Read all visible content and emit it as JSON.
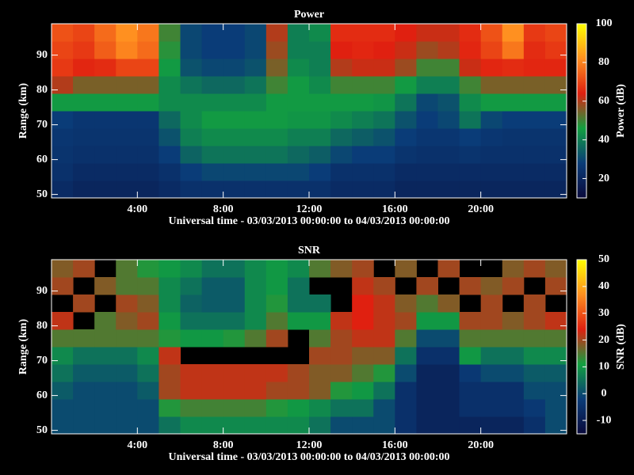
{
  "chart_data": [
    {
      "type": "heatmap",
      "title": "Power",
      "xlabel": "Universal time - 03/03/2013 00:00:00 to 04/03/2013 00:00:00",
      "ylabel": "Range (km)",
      "colorbar_label": "Power (dB)",
      "x": [
        0.5,
        1.5,
        2.5,
        3.5,
        4.5,
        5.5,
        6.5,
        7.5,
        8.5,
        9.5,
        10.5,
        11.5,
        12.5,
        13.5,
        14.5,
        15.5,
        16.5,
        17.5,
        18.5,
        19.5,
        20.5,
        21.5,
        22.5,
        23.5
      ],
      "y": [
        51.5,
        56.5,
        61.5,
        66.5,
        71.5,
        76.5,
        81.5,
        86.5,
        91.5,
        96.5
      ],
      "z": [
        [
          22,
          20,
          20,
          20,
          20,
          22,
          24,
          24,
          24,
          24,
          24,
          24,
          24,
          22,
          22,
          22,
          20,
          20,
          20,
          20,
          20,
          20,
          20,
          20
        ],
        [
          24,
          22,
          22,
          22,
          22,
          24,
          28,
          30,
          30,
          30,
          30,
          30,
          28,
          24,
          24,
          24,
          22,
          22,
          22,
          22,
          22,
          22,
          22,
          22
        ],
        [
          25,
          24,
          24,
          24,
          24,
          28,
          35,
          38,
          38,
          38,
          38,
          36,
          34,
          30,
          28,
          28,
          25,
          24,
          24,
          25,
          24,
          24,
          24,
          24
        ],
        [
          26,
          25,
          25,
          25,
          25,
          32,
          40,
          42,
          42,
          42,
          42,
          40,
          40,
          36,
          34,
          32,
          28,
          26,
          26,
          28,
          26,
          25,
          25,
          25
        ],
        [
          28,
          26,
          26,
          26,
          26,
          36,
          42,
          45,
          45,
          45,
          45,
          44,
          44,
          42,
          40,
          38,
          32,
          28,
          30,
          38,
          30,
          28,
          28,
          28
        ],
        [
          45,
          45,
          45,
          45,
          45,
          42,
          42,
          42,
          42,
          42,
          45,
          45,
          45,
          45,
          45,
          44,
          38,
          30,
          32,
          42,
          45,
          45,
          45,
          45
        ],
        [
          60,
          55,
          55,
          55,
          55,
          42,
          38,
          36,
          36,
          38,
          50,
          45,
          42,
          50,
          50,
          50,
          45,
          40,
          40,
          50,
          55,
          55,
          55,
          55
        ],
        [
          68,
          65,
          66,
          70,
          70,
          45,
          32,
          30,
          30,
          32,
          55,
          42,
          40,
          60,
          62,
          62,
          58,
          50,
          50,
          62,
          65,
          66,
          65,
          65
        ],
        [
          70,
          68,
          74,
          80,
          76,
          48,
          30,
          28,
          28,
          30,
          58,
          40,
          40,
          64,
          65,
          64,
          62,
          58,
          60,
          65,
          70,
          78,
          66,
          68
        ],
        [
          72,
          70,
          76,
          82,
          78,
          50,
          30,
          28,
          28,
          30,
          60,
          40,
          42,
          66,
          66,
          66,
          64,
          62,
          62,
          66,
          72,
          82,
          68,
          70
        ]
      ],
      "xlim": [
        0,
        24
      ],
      "ylim": [
        49,
        99
      ],
      "xticks": [
        {
          "value": 4,
          "label": "4:00"
        },
        {
          "value": 8,
          "label": "8:00"
        },
        {
          "value": 12,
          "label": "12:00"
        },
        {
          "value": 16,
          "label": "16:00"
        },
        {
          "value": 20,
          "label": "20:00"
        }
      ],
      "yticks": [
        50,
        60,
        70,
        80,
        90
      ],
      "zlim": [
        10,
        100
      ],
      "zticks": [
        20,
        40,
        60,
        80,
        100
      ],
      "colors": [
        "#0a0a3c",
        "#0a3c78",
        "#12a040",
        "#e02010",
        "#ff9020",
        "#ffff00"
      ]
    },
    {
      "type": "heatmap",
      "title": "SNR",
      "xlabel": "Universal time - 03/03/2013 00:00:00 to 04/03/2013 00:00:00",
      "ylabel": "Range (km)",
      "colorbar_label": "SNR (dB)",
      "x": [
        0.5,
        1.5,
        2.5,
        3.5,
        4.5,
        5.5,
        6.5,
        7.5,
        8.5,
        9.5,
        10.5,
        11.5,
        12.5,
        13.5,
        14.5,
        15.5,
        16.5,
        17.5,
        18.5,
        19.5,
        20.5,
        21.5,
        22.5,
        23.5
      ],
      "y": [
        51.5,
        56.5,
        61.5,
        66.5,
        71.5,
        76.5,
        81.5,
        86.5,
        91.5,
        96.5
      ],
      "z": [
        [
          0,
          0,
          0,
          0,
          0,
          5,
          8,
          8,
          8,
          8,
          8,
          8,
          5,
          0,
          0,
          0,
          -5,
          -8,
          -8,
          -8,
          -8,
          -8,
          -5,
          0
        ],
        [
          0,
          0,
          0,
          0,
          0,
          12,
          14,
          14,
          14,
          14,
          12,
          10,
          8,
          5,
          5,
          0,
          -5,
          -8,
          -8,
          -5,
          -5,
          -5,
          -3,
          0
        ],
        [
          2,
          0,
          0,
          0,
          2,
          20,
          22,
          22,
          22,
          22,
          20,
          20,
          18,
          12,
          10,
          5,
          -5,
          -8,
          -8,
          -5,
          -5,
          -5,
          0,
          0
        ],
        [
          5,
          2,
          2,
          2,
          5,
          20,
          22,
          22,
          22,
          22,
          22,
          20,
          18,
          18,
          15,
          12,
          0,
          -8,
          -8,
          -3,
          0,
          0,
          2,
          2
        ],
        [
          8,
          5,
          5,
          5,
          8,
          22,
          null,
          null,
          null,
          null,
          null,
          null,
          20,
          20,
          18,
          18,
          5,
          -5,
          -5,
          10,
          5,
          5,
          8,
          8
        ],
        [
          15,
          15,
          15,
          15,
          15,
          12,
          10,
          10,
          12,
          15,
          20,
          null,
          15,
          20,
          22,
          22,
          15,
          0,
          0,
          15,
          15,
          15,
          15,
          15
        ],
        [
          22,
          null,
          15,
          18,
          20,
          10,
          5,
          5,
          5,
          8,
          15,
          10,
          10,
          22,
          24,
          22,
          20,
          10,
          10,
          20,
          20,
          18,
          20,
          22
        ],
        [
          null,
          20,
          null,
          20,
          18,
          8,
          3,
          2,
          2,
          8,
          12,
          5,
          5,
          null,
          24,
          22,
          18,
          15,
          18,
          null,
          20,
          null,
          20,
          null
        ],
        [
          20,
          null,
          18,
          15,
          15,
          8,
          5,
          2,
          2,
          8,
          10,
          5,
          null,
          null,
          22,
          20,
          null,
          20,
          null,
          20,
          18,
          20,
          null,
          20
        ],
        [
          18,
          20,
          null,
          15,
          12,
          10,
          8,
          5,
          5,
          8,
          10,
          8,
          15,
          18,
          20,
          null,
          18,
          null,
          20,
          null,
          null,
          18,
          20,
          18
        ]
      ],
      "xlim": [
        0,
        24
      ],
      "ylim": [
        49,
        99
      ],
      "xticks": [
        {
          "value": 4,
          "label": "4:00"
        },
        {
          "value": 8,
          "label": "8:00"
        },
        {
          "value": 12,
          "label": "12:00"
        },
        {
          "value": 16,
          "label": "16:00"
        },
        {
          "value": 20,
          "label": "20:00"
        }
      ],
      "yticks": [
        50,
        60,
        70,
        80,
        90
      ],
      "zlim": [
        -15,
        50
      ],
      "zticks": [
        -10,
        0,
        10,
        20,
        30,
        40,
        50
      ],
      "colors": [
        "#0a0a3c",
        "#0a3c78",
        "#12a040",
        "#e02010",
        "#ff9020",
        "#ffff00"
      ]
    }
  ]
}
